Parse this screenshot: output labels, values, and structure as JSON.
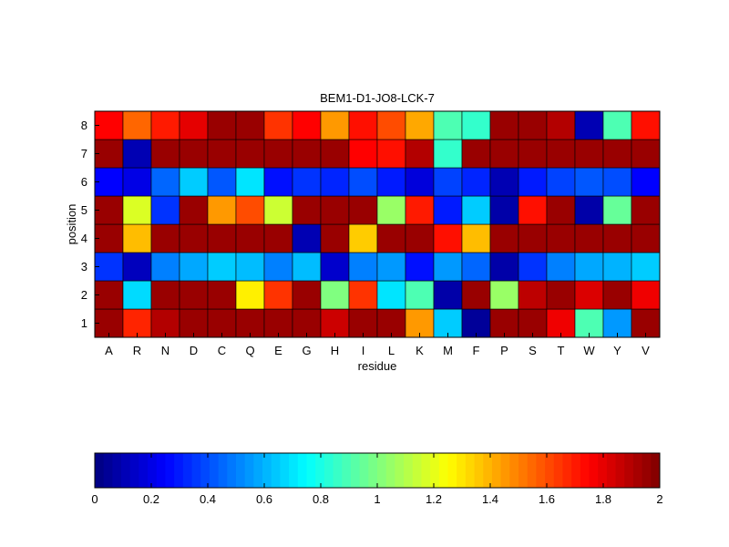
{
  "chart_data": {
    "type": "heatmap",
    "title": "BEM1-D1-JO8-LCK-7",
    "xlabel": "residue",
    "ylabel": "position",
    "x_categories": [
      "A",
      "R",
      "N",
      "D",
      "C",
      "Q",
      "E",
      "G",
      "H",
      "I",
      "L",
      "K",
      "M",
      "F",
      "P",
      "S",
      "T",
      "W",
      "Y",
      "V"
    ],
    "y_categories": [
      "1",
      "2",
      "3",
      "4",
      "5",
      "6",
      "7",
      "8"
    ],
    "colormap": "jet",
    "colorbar": {
      "min": 0,
      "max": 2,
      "ticks": [
        0,
        0.2,
        0.4,
        0.6,
        0.8,
        1,
        1.2,
        1.4,
        1.6,
        1.8,
        2
      ],
      "tick_labels": [
        "0",
        "0.2",
        "0.4",
        "0.6",
        "0.8",
        "1",
        "1.2",
        "1.4",
        "1.6",
        "1.8",
        "2"
      ],
      "placement": "bottom"
    },
    "values": [
      [
        1.95,
        1.68,
        1.9,
        1.95,
        1.95,
        1.95,
        1.95,
        1.95,
        1.85,
        1.95,
        1.95,
        1.45,
        0.65,
        0.05,
        1.95,
        1.95,
        1.78,
        0.9,
        0.55,
        1.95
      ],
      [
        1.95,
        0.68,
        1.95,
        1.95,
        1.95,
        1.28,
        1.65,
        1.95,
        1.0,
        1.65,
        0.7,
        0.9,
        0.08,
        1.95,
        1.05,
        1.88,
        1.95,
        1.82,
        1.95,
        1.78
      ],
      [
        0.35,
        0.12,
        0.5,
        0.58,
        0.65,
        0.62,
        0.5,
        0.62,
        0.15,
        0.5,
        0.55,
        0.28,
        0.55,
        0.45,
        0.08,
        0.35,
        0.5,
        0.58,
        0.6,
        0.65
      ],
      [
        1.95,
        1.38,
        1.95,
        1.95,
        1.95,
        1.95,
        1.95,
        0.1,
        1.95,
        1.35,
        1.95,
        1.95,
        1.72,
        1.38,
        1.95,
        1.95,
        1.95,
        1.95,
        1.95,
        1.95
      ],
      [
        1.95,
        1.18,
        0.35,
        1.95,
        1.45,
        1.6,
        1.15,
        1.95,
        1.95,
        1.95,
        1.05,
        1.7,
        0.3,
        0.65,
        0.08,
        1.72,
        1.95,
        0.08,
        0.95,
        1.95
      ],
      [
        0.25,
        0.2,
        0.45,
        0.65,
        0.42,
        0.7,
        0.28,
        0.35,
        0.32,
        0.4,
        0.3,
        0.18,
        0.38,
        0.32,
        0.1,
        0.3,
        0.38,
        0.42,
        0.4,
        0.25
      ],
      [
        1.95,
        0.1,
        1.95,
        1.95,
        1.95,
        1.95,
        1.95,
        1.95,
        1.95,
        1.75,
        1.72,
        1.9,
        0.85,
        1.95,
        1.95,
        1.95,
        1.95,
        1.95,
        1.95,
        1.95
      ],
      [
        1.75,
        1.55,
        1.7,
        1.8,
        1.95,
        1.95,
        1.65,
        1.75,
        1.45,
        1.72,
        1.6,
        1.42,
        0.9,
        0.85,
        1.95,
        1.95,
        1.9,
        0.1,
        0.9,
        1.72
      ]
    ]
  }
}
